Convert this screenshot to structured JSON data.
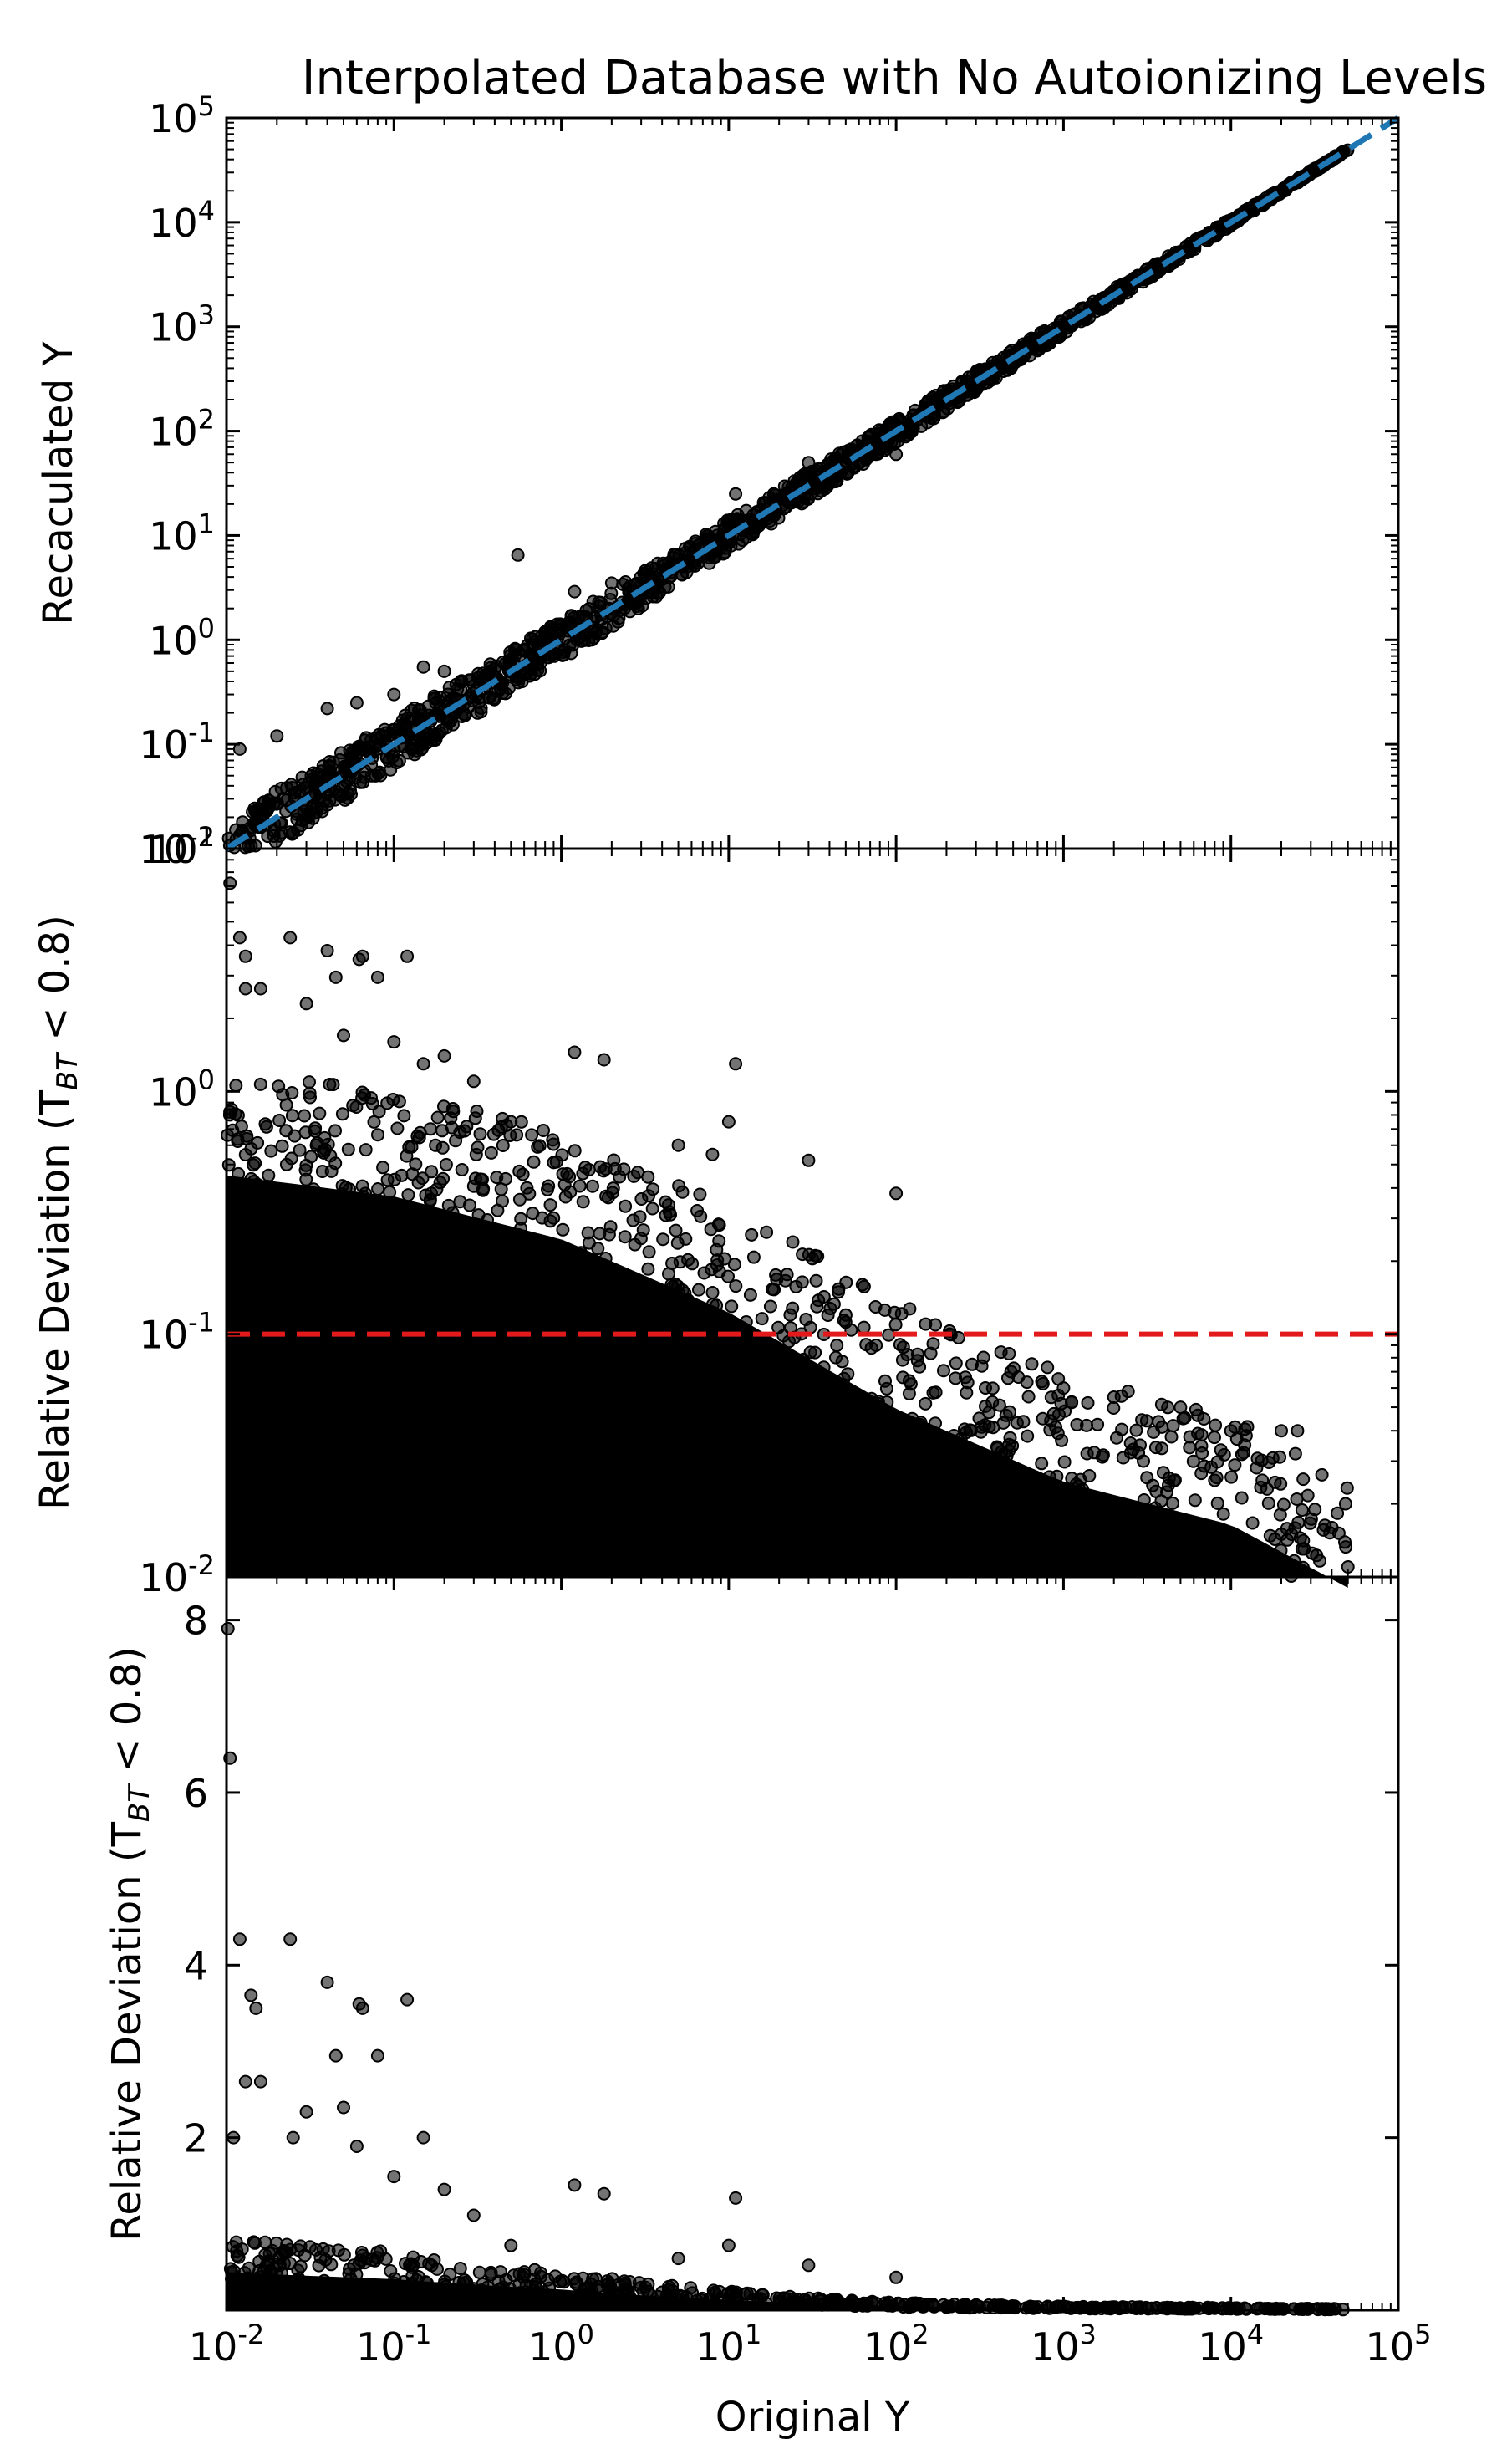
{
  "title": "Interpolated Database with No Autoionizing Levels",
  "chart_data": [
    {
      "type": "scatter",
      "panel": "top",
      "xlabel": "Original Y",
      "ylabel": "Recaculated Y",
      "xscale": "log",
      "yscale": "log",
      "xlim": [
        0.01,
        100000
      ],
      "ylim": [
        0.01,
        100000
      ],
      "y_ticks": [
        "10^-2",
        "10^-1",
        "10^0",
        "10^1",
        "10^2",
        "10^3",
        "10^4",
        "10^5"
      ],
      "marker_color": "#000000",
      "reference_line": {
        "type": "y=x",
        "style": "dashed",
        "color": "#1f77b4",
        "extent": [
          0.01,
          100000
        ]
      },
      "series": [
        {
          "main_band": {
            "x_range": [
              0.01,
              50000
            ],
            "relative_spread_at_low_x": 0.6,
            "relative_spread_at_high_x": 0.02
          },
          "outliers": [
            {
              "x": 0.55,
              "y": 6.5
            },
            {
              "x": 11,
              "y": 25
            },
            {
              "x": 100,
              "y": 60
            },
            {
              "x": 30,
              "y": 50
            },
            {
              "x": 0.012,
              "y": 0.09
            },
            {
              "x": 0.02,
              "y": 0.12
            },
            {
              "x": 0.04,
              "y": 0.22
            },
            {
              "x": 0.06,
              "y": 0.25
            },
            {
              "x": 0.1,
              "y": 0.3
            },
            {
              "x": 0.15,
              "y": 0.55
            },
            {
              "x": 0.2,
              "y": 0.5
            },
            {
              "x": 1.2,
              "y": 2.9
            },
            {
              "x": 2.0,
              "y": 3.5
            }
          ]
        }
      ]
    },
    {
      "type": "scatter",
      "panel": "middle",
      "xlabel": "Original Y",
      "ylabel_prefix": "Relative Deviation (T",
      "ylabel_sub": "BT",
      "ylabel_suffix": " < 0.8)",
      "xscale": "log",
      "yscale": "log",
      "xlim": [
        0.01,
        100000
      ],
      "ylim": [
        0.01,
        10
      ],
      "y_ticks": [
        "10^-2",
        "10^-1",
        "10^0"
      ],
      "marker_color": "#000000",
      "threshold_line": {
        "y": 0.1,
        "style": "dashed",
        "color": "#e31a1c"
      },
      "series": [
        {
          "envelope": [
            {
              "x": 0.01,
              "y": 0.55
            },
            {
              "x": 0.1,
              "y": 0.45
            },
            {
              "x": 1,
              "y": 0.3
            },
            {
              "x": 10,
              "y": 0.15
            },
            {
              "x": 100,
              "y": 0.06
            },
            {
              "x": 1000,
              "y": 0.03
            },
            {
              "x": 10000,
              "y": 0.02
            },
            {
              "x": 50000,
              "y": 0.011
            }
          ],
          "outliers": [
            {
              "x": 0.0105,
              "y": 7.2
            },
            {
              "x": 0.012,
              "y": 4.3
            },
            {
              "x": 0.013,
              "y": 3.6
            },
            {
              "x": 0.024,
              "y": 4.3
            },
            {
              "x": 0.04,
              "y": 3.8
            },
            {
              "x": 0.045,
              "y": 2.95
            },
            {
              "x": 0.062,
              "y": 3.5
            },
            {
              "x": 0.065,
              "y": 3.6
            },
            {
              "x": 0.08,
              "y": 2.95
            },
            {
              "x": 0.12,
              "y": 3.6
            },
            {
              "x": 0.013,
              "y": 2.65
            },
            {
              "x": 0.016,
              "y": 2.65
            },
            {
              "x": 0.03,
              "y": 2.3
            },
            {
              "x": 0.05,
              "y": 1.7
            },
            {
              "x": 0.1,
              "y": 1.6
            },
            {
              "x": 0.15,
              "y": 1.3
            },
            {
              "x": 0.2,
              "y": 1.4
            },
            {
              "x": 0.3,
              "y": 1.1
            },
            {
              "x": 0.5,
              "y": 0.75
            },
            {
              "x": 1.2,
              "y": 1.45
            },
            {
              "x": 1.8,
              "y": 1.35
            },
            {
              "x": 5,
              "y": 0.6
            },
            {
              "x": 8,
              "y": 0.55
            },
            {
              "x": 11,
              "y": 1.3
            },
            {
              "x": 10,
              "y": 0.75
            },
            {
              "x": 30,
              "y": 0.52
            },
            {
              "x": 100,
              "y": 0.38
            },
            {
              "x": 50,
              "y": 0.12
            },
            {
              "x": 150,
              "y": 0.11
            },
            {
              "x": 1000,
              "y": 0.06
            },
            {
              "x": 2000,
              "y": 0.055
            },
            {
              "x": 5000,
              "y": 0.05
            },
            {
              "x": 10000,
              "y": 0.04
            },
            {
              "x": 20000,
              "y": 0.04
            },
            {
              "x": 25000,
              "y": 0.04
            },
            {
              "x": 3000,
              "y": 0.03
            },
            {
              "x": 8000,
              "y": 0.025
            },
            {
              "x": 20000,
              "y": 0.015
            },
            {
              "x": 50000,
              "y": 0.011
            }
          ]
        }
      ]
    },
    {
      "type": "scatter",
      "panel": "bottom",
      "xlabel": "Original Y",
      "ylabel_prefix": "Relative Deviation (T",
      "ylabel_sub": "BT",
      "ylabel_suffix": " < 0.8)",
      "xscale": "log",
      "yscale": "linear",
      "xlim": [
        0.01,
        100000
      ],
      "ylim": [
        0,
        8.5
      ],
      "x_ticks": [
        "10^-2",
        "10^-1",
        "10^0",
        "10^1",
        "10^2",
        "10^3",
        "10^4",
        "10^5"
      ],
      "y_ticks": [
        "2",
        "4",
        "6",
        "8"
      ],
      "marker_color": "#000000",
      "series": [
        {
          "envelope": [
            {
              "x": 0.01,
              "y": 0.55
            },
            {
              "x": 0.1,
              "y": 0.45
            },
            {
              "x": 1,
              "y": 0.3
            },
            {
              "x": 10,
              "y": 0.15
            },
            {
              "x": 100,
              "y": 0.06
            },
            {
              "x": 1000,
              "y": 0.03
            },
            {
              "x": 10000,
              "y": 0.02
            },
            {
              "x": 50000,
              "y": 0.011
            }
          ],
          "outliers": [
            {
              "x": 0.0102,
              "y": 7.9
            },
            {
              "x": 0.0105,
              "y": 6.4
            },
            {
              "x": 0.012,
              "y": 4.3
            },
            {
              "x": 0.014,
              "y": 3.65
            },
            {
              "x": 0.015,
              "y": 3.5
            },
            {
              "x": 0.024,
              "y": 4.3
            },
            {
              "x": 0.04,
              "y": 3.8
            },
            {
              "x": 0.062,
              "y": 3.55
            },
            {
              "x": 0.065,
              "y": 3.5
            },
            {
              "x": 0.12,
              "y": 3.6
            },
            {
              "x": 0.045,
              "y": 2.95
            },
            {
              "x": 0.08,
              "y": 2.95
            },
            {
              "x": 0.013,
              "y": 2.65
            },
            {
              "x": 0.016,
              "y": 2.65
            },
            {
              "x": 0.03,
              "y": 2.3
            },
            {
              "x": 0.05,
              "y": 2.35
            },
            {
              "x": 0.011,
              "y": 2.0
            },
            {
              "x": 0.025,
              "y": 2.0
            },
            {
              "x": 0.06,
              "y": 1.9
            },
            {
              "x": 0.1,
              "y": 1.55
            },
            {
              "x": 0.15,
              "y": 2.0
            },
            {
              "x": 0.2,
              "y": 1.4
            },
            {
              "x": 0.3,
              "y": 1.1
            },
            {
              "x": 0.5,
              "y": 0.75
            },
            {
              "x": 1.2,
              "y": 1.45
            },
            {
              "x": 1.8,
              "y": 1.35
            },
            {
              "x": 5,
              "y": 0.6
            },
            {
              "x": 11,
              "y": 1.3
            },
            {
              "x": 10,
              "y": 0.75
            },
            {
              "x": 30,
              "y": 0.52
            },
            {
              "x": 100,
              "y": 0.38
            }
          ]
        }
      ]
    }
  ]
}
